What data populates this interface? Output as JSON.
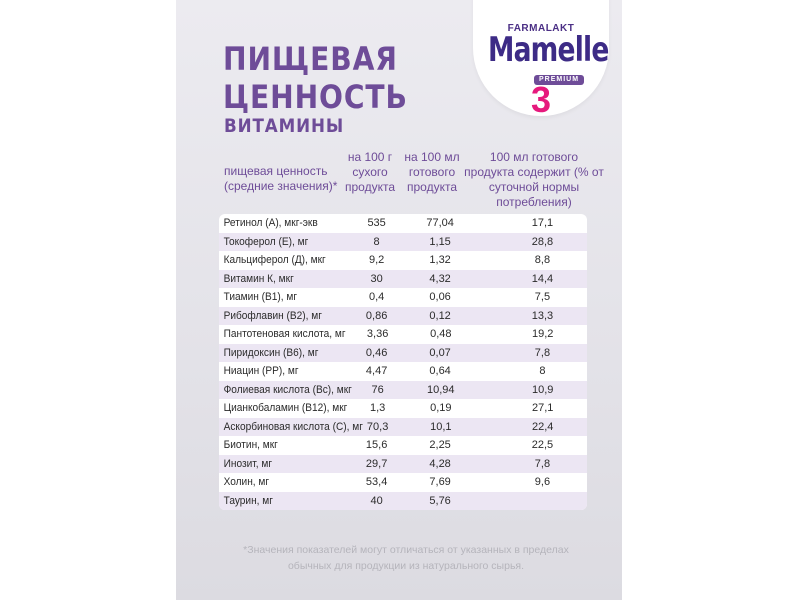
{
  "brand": {
    "maker": "FARMALAKT",
    "name": "Mamelle",
    "line": "PREMIUM",
    "stage": "3"
  },
  "title": {
    "line1": "ПИЩЕВАЯ",
    "line2": "ЦЕННОСТЬ",
    "subtitle": "ВИТАМИНЫ"
  },
  "headers": {
    "name": "пищевая ценность (средние значения)*",
    "col1": "на 100 г сухого продукта",
    "col2": "на 100 мл готового продукта",
    "col3": "100 мл готового продукта содержит (% от суточной нормы потребления)"
  },
  "rows": [
    {
      "name": "Ретинол (А), мкг-экв",
      "c1": "535",
      "c2": "77,04",
      "c3": "17,1"
    },
    {
      "name": "Токоферол (Е), мг",
      "c1": "8",
      "c2": "1,15",
      "c3": "28,8"
    },
    {
      "name": "Кальциферол (Д), мкг",
      "c1": "9,2",
      "c2": "1,32",
      "c3": "8,8"
    },
    {
      "name": "Витамин К, мкг",
      "c1": "30",
      "c2": "4,32",
      "c3": "14,4"
    },
    {
      "name": "Тиамин (В1), мг",
      "c1": "0,4",
      "c2": "0,06",
      "c3": "7,5"
    },
    {
      "name": "Рибофлавин (В2), мг",
      "c1": "0,86",
      "c2": "0,12",
      "c3": "13,3"
    },
    {
      "name": "Пантотеновая кислота, мг",
      "c1": "3,36",
      "c2": "0,48",
      "c3": "19,2"
    },
    {
      "name": "Пиридоксин (В6), мг",
      "c1": "0,46",
      "c2": "0,07",
      "c3": "7,8"
    },
    {
      "name": "Ниацин (РР), мг",
      "c1": "4,47",
      "c2": "0,64",
      "c3": "8"
    },
    {
      "name": "Фолиевая кислота (Вс), мкг",
      "c1": "76",
      "c2": "10,94",
      "c3": "10,9"
    },
    {
      "name": "Цианкобаламин (В12), мкг",
      "c1": "1,3",
      "c2": "0,19",
      "c3": "27,1"
    },
    {
      "name": "Аскорбиновая кислота (С), мг",
      "c1": "70,3",
      "c2": "10,1",
      "c3": "22,4"
    },
    {
      "name": "Биотин, мкг",
      "c1": "15,6",
      "c2": "2,25",
      "c3": "22,5"
    },
    {
      "name": "Инозит, мг",
      "c1": "29,7",
      "c2": "4,28",
      "c3": "7,8"
    },
    {
      "name": "Холин, мг",
      "c1": "53,4",
      "c2": "7,69",
      "c3": "9,6"
    },
    {
      "name": "Таурин, мг",
      "c1": "40",
      "c2": "5,76",
      "c3": ""
    }
  ],
  "footnote": "*Значения показателей могут отличаться от указанных в пределах обычных для продукции из натурального сырья."
}
